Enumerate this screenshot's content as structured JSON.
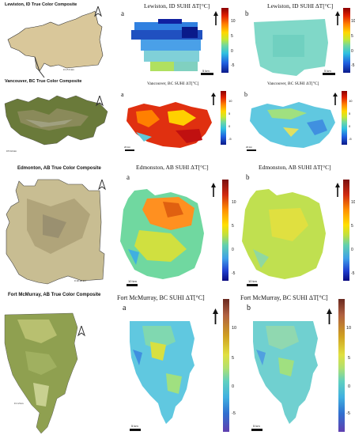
{
  "colors": {
    "colorbar_gradient": "linear-gradient(to bottom,#8b0000 0%,#e02000 12%,#ff8000 25%,#ffd700 38%,#c8e830 48%,#70d8a0 58%,#30c0e0 70%,#2060e0 85%,#0a1a8a 100%)",
    "edm_colorbar_gradient": "linear-gradient(to bottom,#7a1010 0%,#d02a10 15%,#ff9000 30%,#ffe000 45%,#bfe040 55%,#60d0b0 65%,#40a0e8 78%,#2040d0 90%,#0a0a80 100%)",
    "fm_colorbar_gradient": "linear-gradient(to bottom,#6a2a20 0%,#b06040 12%,#d0a020 28%,#e0e040 42%,#b0e070 52%,#60d0c0 62%,#40b0e0 74%,#3070d0 86%,#6040b0 100%)"
  },
  "rows": [
    {
      "true_color_title": "Lewiston, ID True Color Composite",
      "panel_a_letter": "a",
      "panel_a_title": "Lewiston, ID SUHI ΔT[°C]",
      "panel_b_letter": "b",
      "panel_b_title": "Lewiston, ID SUHI ΔT[°C]",
      "colorbar_ticks": [
        "10",
        "5",
        "0",
        "-5"
      ],
      "scale_a": "5 km",
      "scale_b": "5 km",
      "scale_tc": "0  1.5  3 km"
    },
    {
      "true_color_title": "Vancouver, BC True Color Composite",
      "panel_a_letter": "a",
      "panel_a_title": "Vancouver, BC SUHI ΔT[°C]",
      "panel_b_letter": "b",
      "panel_b_title": "Vancouver, BC SUHI ΔT[°C]",
      "colorbar_ticks": [
        "10",
        "5",
        "0",
        "-5"
      ],
      "scale_a": "20 km",
      "scale_b": "20 km",
      "scale_tc": "0  5  10 km"
    },
    {
      "true_color_title": "Edmonton, AB True Color Composite",
      "panel_a_letter": "a",
      "panel_a_title": "Edmonston, AB SUHI ΔT[°C]",
      "panel_b_letter": "b",
      "panel_b_title": "Edmonston, AB SUHI ΔT[°C]",
      "colorbar_ticks": [
        "10",
        "5",
        "0",
        "-5"
      ],
      "scale_a": "10 km",
      "scale_b": "10 km",
      "scale_tc": "0  10  20 km"
    },
    {
      "true_color_title": "Fort McMurray, AB True Color Composite",
      "panel_a_letter": "a",
      "panel_a_title": "Fort McMurray, BC SUHI ΔT[°C]",
      "panel_b_letter": "b",
      "panel_b_title": "Fort McMurray, BC SUHI ΔT[°C]",
      "colorbar_ticks": [
        "10",
        "5",
        "0",
        "-5"
      ],
      "scale_a": "5 km",
      "scale_b": "5 km",
      "scale_tc": "0  1  2 km"
    }
  ]
}
